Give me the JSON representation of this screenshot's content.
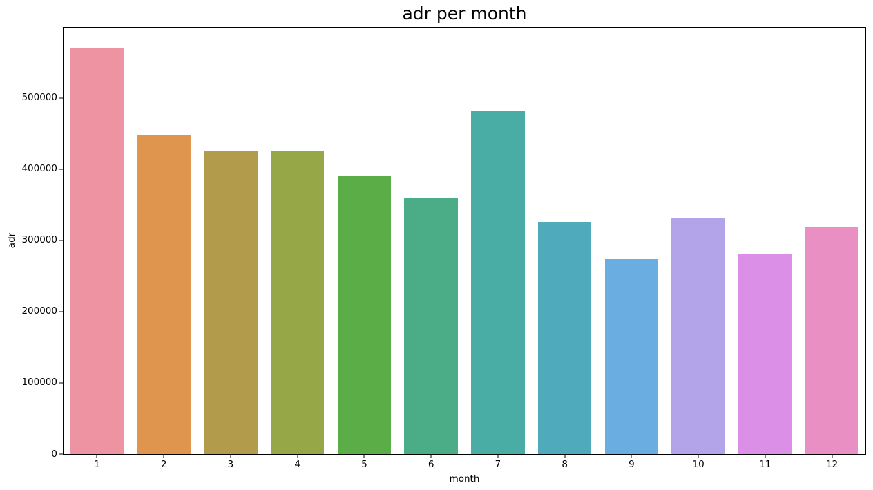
{
  "chart_data": {
    "type": "bar",
    "title": "adr per month",
    "xlabel": "month",
    "ylabel": "adr",
    "categories": [
      "1",
      "2",
      "3",
      "4",
      "5",
      "6",
      "7",
      "8",
      "9",
      "10",
      "11",
      "12"
    ],
    "values": [
      570000,
      447000,
      425000,
      425000,
      391000,
      359000,
      481000,
      326000,
      274000,
      330500,
      280500,
      319000
    ],
    "bar_colors": [
      "#ee93a2",
      "#e0954f",
      "#b29b4a",
      "#95a747",
      "#5aad47",
      "#4bad88",
      "#49aca5",
      "#4fabbc",
      "#6aade0",
      "#b3a3e8",
      "#dc8fe6",
      "#e98fc4"
    ],
    "ylim": [
      0,
      598500
    ],
    "yticks": [
      0,
      100000,
      200000,
      300000,
      400000,
      500000
    ],
    "bar_rel_width": 0.8,
    "grid": false,
    "legend": "none",
    "axis_color": "#000000",
    "background_color": "#ffffff"
  }
}
